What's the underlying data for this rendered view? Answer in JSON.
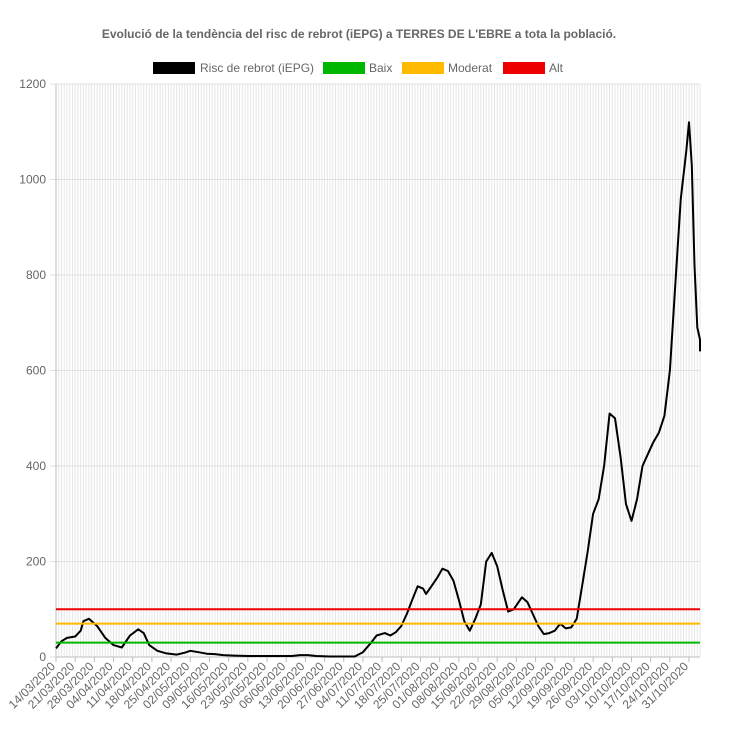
{
  "chart_data": {
    "type": "line",
    "title": "Evolució de la tendència del risc de rebrot (iEPG) a TERRES DE L'EBRE a tota la població.",
    "xlabel": "",
    "ylabel": "",
    "ylim": [
      0,
      1200
    ],
    "yticks": [
      0,
      200,
      400,
      600,
      800,
      1000,
      1200
    ],
    "grid": true,
    "legend_position": "top",
    "x_start": "2020-03-14",
    "x_end": "2020-11-04",
    "x_tick_labels": [
      "14/03/2020",
      "21/03/2020",
      "28/03/2020",
      "04/04/2020",
      "11/04/2020",
      "18/04/2020",
      "25/04/2020",
      "02/05/2020",
      "09/05/2020",
      "16/05/2020",
      "23/05/2020",
      "30/05/2020",
      "06/06/2020",
      "13/06/2020",
      "20/06/2020",
      "27/06/2020",
      "04/07/2020",
      "11/07/2020",
      "18/07/2020",
      "25/07/2020",
      "01/08/2020",
      "08/08/2020",
      "15/08/2020",
      "22/08/2020",
      "29/08/2020",
      "05/09/2020",
      "12/09/2020",
      "19/09/2020",
      "26/09/2020",
      "03/10/2020",
      "10/10/2020",
      "17/10/2020",
      "24/10/2020",
      "31/10/2020"
    ],
    "series": [
      {
        "name": "Risc de rebrot (iEPG)",
        "color": "#000000",
        "points": [
          [
            "2020-03-14",
            18
          ],
          [
            "2020-03-16",
            33
          ],
          [
            "2020-03-18",
            40
          ],
          [
            "2020-03-21",
            43
          ],
          [
            "2020-03-23",
            55
          ],
          [
            "2020-03-24",
            75
          ],
          [
            "2020-03-26",
            80
          ],
          [
            "2020-03-29",
            65
          ],
          [
            "2020-04-01",
            40
          ],
          [
            "2020-04-04",
            25
          ],
          [
            "2020-04-07",
            20
          ],
          [
            "2020-04-10",
            45
          ],
          [
            "2020-04-13",
            58
          ],
          [
            "2020-04-15",
            50
          ],
          [
            "2020-04-17",
            25
          ],
          [
            "2020-04-20",
            13
          ],
          [
            "2020-04-23",
            8
          ],
          [
            "2020-04-27",
            5
          ],
          [
            "2020-04-30",
            9
          ],
          [
            "2020-05-02",
            13
          ],
          [
            "2020-05-05",
            10
          ],
          [
            "2020-05-08",
            7
          ],
          [
            "2020-05-11",
            6
          ],
          [
            "2020-05-14",
            4
          ],
          [
            "2020-05-18",
            3
          ],
          [
            "2020-05-23",
            2
          ],
          [
            "2020-05-28",
            2
          ],
          [
            "2020-06-02",
            2
          ],
          [
            "2020-06-08",
            2
          ],
          [
            "2020-06-11",
            4
          ],
          [
            "2020-06-14",
            4
          ],
          [
            "2020-06-17",
            2
          ],
          [
            "2020-06-22",
            1
          ],
          [
            "2020-06-27",
            1
          ],
          [
            "2020-07-01",
            1
          ],
          [
            "2020-07-04",
            10
          ],
          [
            "2020-07-07",
            30
          ],
          [
            "2020-07-09",
            45
          ],
          [
            "2020-07-12",
            50
          ],
          [
            "2020-07-14",
            45
          ],
          [
            "2020-07-16",
            52
          ],
          [
            "2020-07-18",
            65
          ],
          [
            "2020-07-20",
            90
          ],
          [
            "2020-07-22",
            120
          ],
          [
            "2020-07-24",
            148
          ],
          [
            "2020-07-26",
            143
          ],
          [
            "2020-07-27",
            132
          ],
          [
            "2020-07-29",
            148
          ],
          [
            "2020-07-31",
            165
          ],
          [
            "2020-08-02",
            185
          ],
          [
            "2020-08-04",
            180
          ],
          [
            "2020-08-06",
            160
          ],
          [
            "2020-08-08",
            120
          ],
          [
            "2020-08-10",
            75
          ],
          [
            "2020-08-12",
            55
          ],
          [
            "2020-08-14",
            80
          ],
          [
            "2020-08-16",
            110
          ],
          [
            "2020-08-18",
            200
          ],
          [
            "2020-08-20",
            218
          ],
          [
            "2020-08-22",
            190
          ],
          [
            "2020-08-24",
            140
          ],
          [
            "2020-08-26",
            95
          ],
          [
            "2020-08-28",
            100
          ],
          [
            "2020-08-31",
            125
          ],
          [
            "2020-09-02",
            115
          ],
          [
            "2020-09-04",
            90
          ],
          [
            "2020-09-06",
            65
          ],
          [
            "2020-09-08",
            48
          ],
          [
            "2020-09-10",
            50
          ],
          [
            "2020-09-12",
            55
          ],
          [
            "2020-09-14",
            70
          ],
          [
            "2020-09-16",
            60
          ],
          [
            "2020-09-18",
            62
          ],
          [
            "2020-09-20",
            80
          ],
          [
            "2020-09-22",
            150
          ],
          [
            "2020-09-24",
            220
          ],
          [
            "2020-09-26",
            300
          ],
          [
            "2020-09-28",
            330
          ],
          [
            "2020-09-30",
            400
          ],
          [
            "2020-10-02",
            510
          ],
          [
            "2020-10-04",
            500
          ],
          [
            "2020-10-06",
            420
          ],
          [
            "2020-10-08",
            320
          ],
          [
            "2020-10-10",
            285
          ],
          [
            "2020-10-12",
            330
          ],
          [
            "2020-10-14",
            400
          ],
          [
            "2020-10-16",
            425
          ],
          [
            "2020-10-18",
            450
          ],
          [
            "2020-10-20",
            470
          ],
          [
            "2020-10-22",
            505
          ],
          [
            "2020-10-24",
            600
          ],
          [
            "2020-10-26",
            780
          ],
          [
            "2020-10-28",
            960
          ],
          [
            "2020-10-30",
            1060
          ],
          [
            "2020-10-31",
            1120
          ],
          [
            "2020-11-01",
            1030
          ],
          [
            "2020-11-02",
            820
          ],
          [
            "2020-11-03",
            690
          ],
          [
            "2020-11-04",
            665
          ],
          [
            "2020-11-05",
            640
          ]
        ]
      },
      {
        "name": "Baix",
        "color": "#00b700",
        "constant": 30
      },
      {
        "name": "Moderat",
        "color": "#ffb900",
        "constant": 70
      },
      {
        "name": "Alt",
        "color": "#ee0000",
        "constant": 100
      }
    ]
  }
}
